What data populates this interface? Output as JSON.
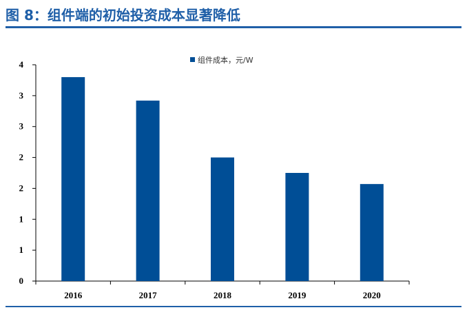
{
  "figure": {
    "title": "图 8：组件端的初始投资成本显著降低"
  },
  "chart_data": {
    "type": "bar",
    "categories": [
      "2016",
      "2017",
      "2018",
      "2019",
      "2020"
    ],
    "series": [
      {
        "name": "组件成本，元/W",
        "values": [
          3.3,
          2.92,
          2.0,
          1.75,
          1.57
        ]
      }
    ],
    "y_tick_labels": [
      "0",
      "1",
      "1",
      "2",
      "2",
      "3",
      "3",
      "4"
    ],
    "ylim": [
      0,
      3.5
    ],
    "grid": false,
    "legend_position": "top-center",
    "colors": {
      "bar": "#004E96",
      "title": "#1F5FA8"
    }
  }
}
